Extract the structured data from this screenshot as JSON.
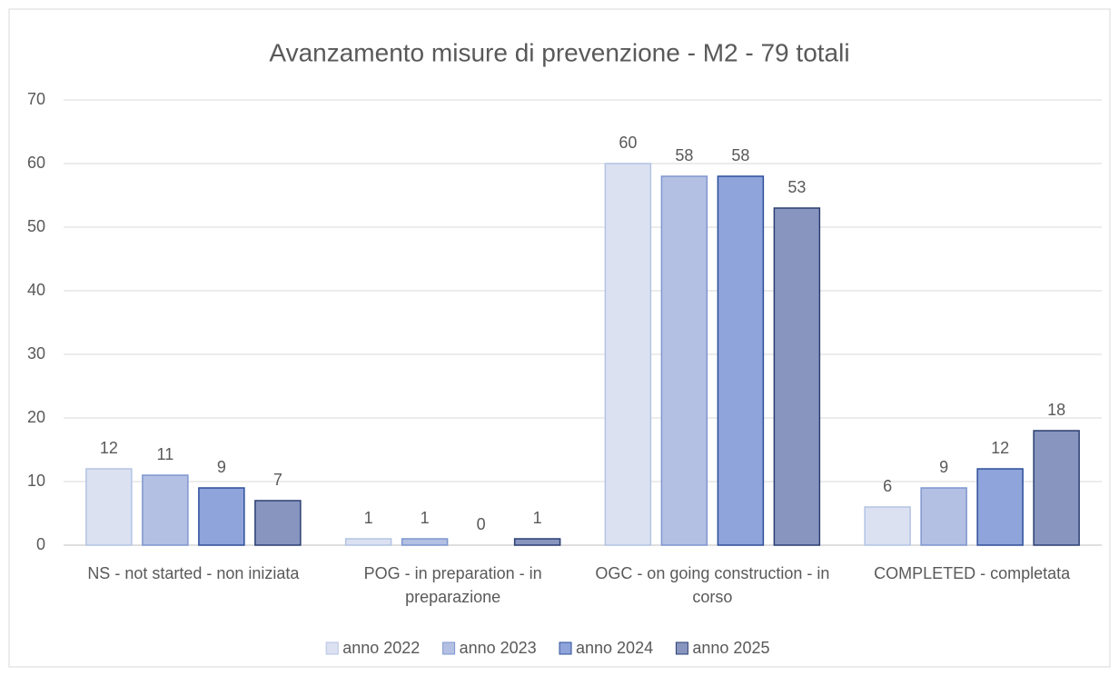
{
  "chart_data": {
    "type": "bar",
    "title": "Avanzamento misure di prevenzione - M2 - 79 totali",
    "categories": [
      "NS - not started - non iniziata",
      "POG - in preparation - in preparazione",
      "OGC - on going construction - in corso",
      "COMPLETED - completata"
    ],
    "series": [
      {
        "name": "anno 2022",
        "color": "#dbe1f1",
        "edgecolor": "#b4c3e4",
        "values": [
          12,
          1,
          60,
          6
        ]
      },
      {
        "name": "anno 2023",
        "color": "#b3c0e3",
        "edgecolor": "#7f96cf",
        "values": [
          11,
          1,
          58,
          9
        ]
      },
      {
        "name": "anno 2024",
        "color": "#8ea4da",
        "edgecolor": "#2f4f9a",
        "values": [
          9,
          0,
          58,
          12
        ]
      },
      {
        "name": "anno 2025",
        "color": "#8795bf",
        "edgecolor": "#2b3f72",
        "values": [
          7,
          1,
          53,
          18
        ]
      }
    ],
    "ylim": [
      0,
      70
    ],
    "yticks": [
      0,
      10,
      20,
      30,
      40,
      50,
      60,
      70
    ],
    "grid": true,
    "legend": "bottom"
  }
}
